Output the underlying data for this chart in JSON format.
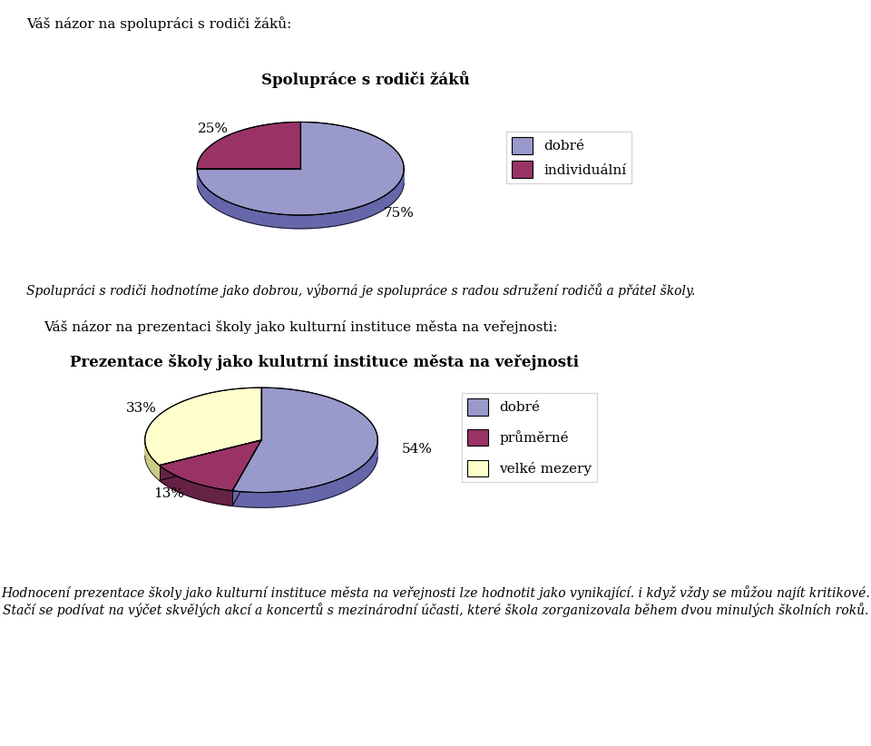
{
  "background_color": "#ffffff",
  "top_label": "Váš názor na spolupráci s rodiči žáků:",
  "pie1_title": "Spolupráce s rodiči žáků",
  "pie1_values": [
    75,
    25
  ],
  "pie1_labels": [
    "75%",
    "25%"
  ],
  "pie1_label_angles": [
    315,
    60
  ],
  "pie1_colors": [
    "#9999cc",
    "#993366"
  ],
  "pie1_colors_dark": [
    "#6666aa",
    "#662244"
  ],
  "pie1_legend": [
    "dobré",
    "individuální"
  ],
  "pie1_legend_colors": [
    "#9999cc",
    "#993366"
  ],
  "italic_text1": "Spolupráci s rodiči hodnotíme jako dobrou, výborná je spolupráce s radou sdružení rodičů a přátel školy.",
  "section2_label": "Váš názor na prezentaci školy jako kulturní instituce města na veřejnosti:",
  "pie2_title": "Prezentace školy jako kulutrní instituce města na veřejnosti",
  "pie2_values": [
    54,
    13,
    33
  ],
  "pie2_labels": [
    "54%",
    "13%",
    "33%"
  ],
  "pie2_label_angles": [
    333,
    234,
    135
  ],
  "pie2_colors": [
    "#9999cc",
    "#993366",
    "#ffffcc"
  ],
  "pie2_colors_dark": [
    "#6666aa",
    "#662244",
    "#cccc88"
  ],
  "pie2_legend": [
    "dobré",
    "průměrné",
    "velké mezery"
  ],
  "pie2_legend_colors": [
    "#9999cc",
    "#993366",
    "#ffffcc"
  ],
  "italic_text2": "Hodnocení prezentace školy jako kulturní instituce města na veřejnosti lze hodnotit jako vynikající. i když vždy se můžou najít kritikové. Stačí se podívat na výčet skvělých akcí a koncertů s mezinárodní účasti, které škola zorganizovala během dvou minulých školních roků."
}
